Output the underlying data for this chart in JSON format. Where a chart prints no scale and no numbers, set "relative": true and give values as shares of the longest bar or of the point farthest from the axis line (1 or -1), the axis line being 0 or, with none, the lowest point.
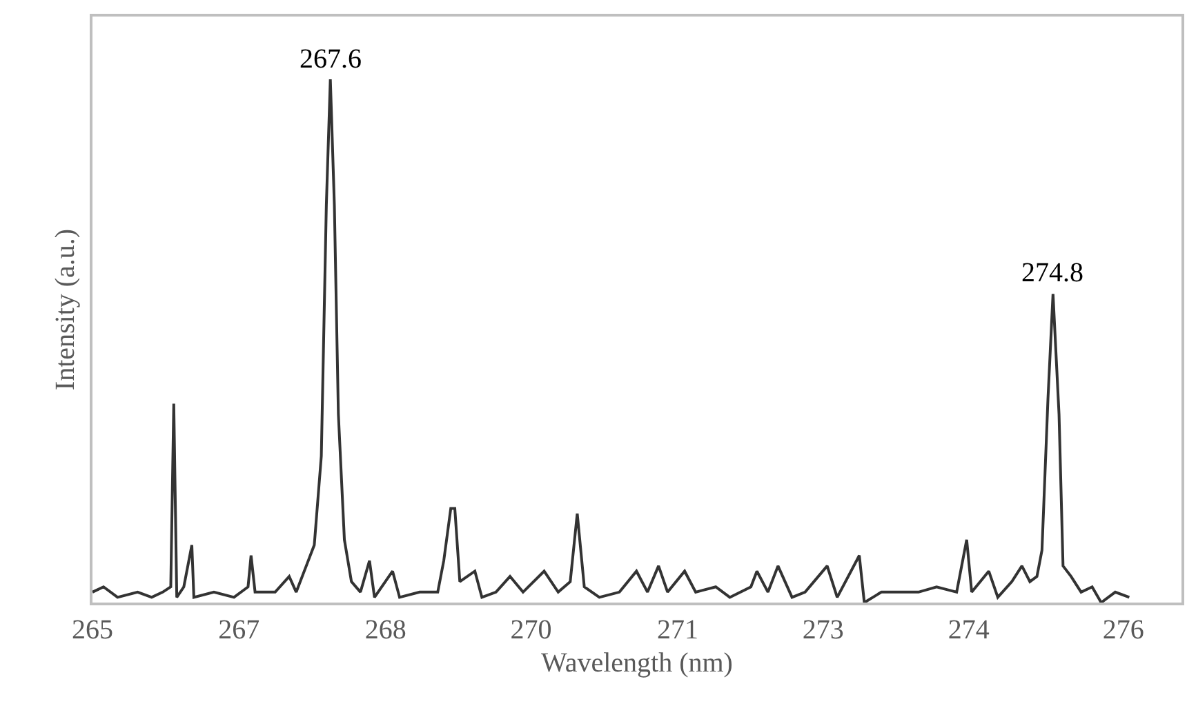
{
  "chart_data": {
    "type": "line",
    "relative": true,
    "xlabel": "Wavelength (nm)",
    "ylabel": "Intensity (a.u.)",
    "xlim": [
      265.23,
      276.08
    ],
    "xticks": [
      {
        "value": 265.23,
        "label": "265"
      },
      {
        "value": 266.69,
        "label": "267"
      },
      {
        "value": 268.15,
        "label": "268"
      },
      {
        "value": 269.6,
        "label": "270"
      },
      {
        "value": 271.06,
        "label": "271"
      },
      {
        "value": 272.51,
        "label": "273"
      },
      {
        "value": 273.96,
        "label": "274"
      },
      {
        "value": 275.5,
        "label": "276"
      }
    ],
    "tick_labels": "x",
    "marker": "none",
    "line_style": "solid",
    "annotations": [
      {
        "text": "267.6",
        "x": 267.6,
        "y": 1
      },
      {
        "text": "274.8",
        "x": 274.8,
        "y": 0.59
      }
    ],
    "series": [
      {
        "color": "#333333",
        "x": [
          265.23,
          265.34,
          265.48,
          265.68,
          265.82,
          265.93,
          266.01,
          266.04,
          266.07,
          266.14,
          266.22,
          266.24,
          266.44,
          266.64,
          266.78,
          266.81,
          266.85,
          267.05,
          267.19,
          267.26,
          267.36,
          267.44,
          267.51,
          267.56,
          267.6,
          267.64,
          267.68,
          267.74,
          267.81,
          267.9,
          267.99,
          268.04,
          268.22,
          268.29,
          268.49,
          268.67,
          268.73,
          268.8,
          268.84,
          268.89,
          269.04,
          269.11,
          269.25,
          269.39,
          269.52,
          269.73,
          269.87,
          269.99,
          270.06,
          270.13,
          270.28,
          270.48,
          270.65,
          270.76,
          270.87,
          270.96,
          271.13,
          271.24,
          271.44,
          271.58,
          271.79,
          271.85,
          271.96,
          272.06,
          272.2,
          272.33,
          272.55,
          272.65,
          272.87,
          272.92,
          273.09,
          273.29,
          273.46,
          273.64,
          273.84,
          273.94,
          273.99,
          274.16,
          274.25,
          274.39,
          274.49,
          274.57,
          274.64,
          274.69,
          274.75,
          274.8,
          274.86,
          274.9,
          274.98,
          275.08,
          275.19,
          275.28,
          275.42,
          275.56
        ],
        "values": [
          0.02,
          0.03,
          0.01,
          0.02,
          0.01,
          0.02,
          0.03,
          0.38,
          0.01,
          0.03,
          0.11,
          0.01,
          0.02,
          0.01,
          0.03,
          0.09,
          0.02,
          0.02,
          0.05,
          0.02,
          0.07,
          0.11,
          0.28,
          0.76,
          1,
          0.76,
          0.36,
          0.12,
          0.04,
          0.02,
          0.08,
          0.01,
          0.06,
          0.01,
          0.02,
          0.02,
          0.08,
          0.18,
          0.18,
          0.04,
          0.06,
          0.01,
          0.02,
          0.05,
          0.02,
          0.06,
          0.02,
          0.04,
          0.17,
          0.03,
          0.01,
          0.02,
          0.06,
          0.02,
          0.07,
          0.02,
          0.06,
          0.02,
          0.03,
          0.01,
          0.03,
          0.06,
          0.02,
          0.07,
          0.01,
          0.02,
          0.07,
          0.01,
          0.09,
          0.0,
          0.02,
          0.02,
          0.02,
          0.03,
          0.02,
          0.12,
          0.02,
          0.06,
          0.01,
          0.04,
          0.07,
          0.04,
          0.05,
          0.1,
          0.39,
          0.59,
          0.36,
          0.07,
          0.05,
          0.02,
          0.03,
          0.0,
          0.02,
          0.01
        ]
      }
    ]
  }
}
